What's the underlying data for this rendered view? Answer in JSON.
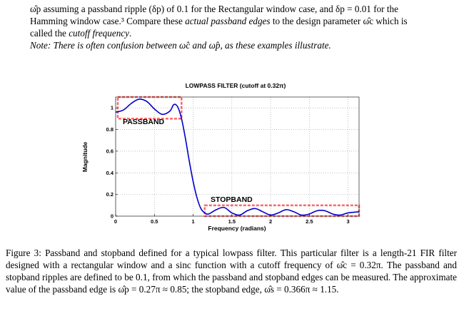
{
  "intro": {
    "line1": "ω̂p assuming a passband ripple (δp) of 0.1 for the Rectangular window case, and δp = 0.01 for the",
    "line2_a": "Hamming window case.³ Compare these ",
    "line2_em": "actual passband edges",
    "line2_b": " to the design parameter ω̂c which is",
    "line3_a": "called the ",
    "line3_em": "cutoff frequency",
    "line3_b": ".",
    "note_label": "Note:",
    "note_text": " There is often confusion between ω̂c and ω̂p, as these examples illustrate."
  },
  "chart_data": {
    "type": "line",
    "title": "LOWPASS FILTER (cutoff at 0.32π)",
    "xlabel": "Frequency (radians)",
    "ylabel": "Magnitude",
    "xlim": [
      0,
      3.1416
    ],
    "ylim": [
      0,
      1.1
    ],
    "grid": true,
    "x_ticks": [
      "0",
      "0.5",
      "1",
      "1.5",
      "2",
      "2.5",
      "3"
    ],
    "y_ticks": [
      "0",
      "0.2",
      "0.4",
      "0.6",
      "0.8",
      "1"
    ],
    "annotations": [
      "PASSBAND",
      "STOPBAND"
    ],
    "passband_region": {
      "x": [
        0,
        0.85
      ],
      "y": [
        0.9,
        1.1
      ]
    },
    "stopband_region": {
      "x": [
        1.15,
        3.1416
      ],
      "y": [
        0,
        0.1
      ]
    },
    "curve_color": "#0000cc",
    "band_color": "#ff6666",
    "series": [
      {
        "x": [
          0,
          0.1,
          0.2,
          0.3,
          0.4,
          0.5,
          0.6,
          0.7,
          0.75,
          0.8,
          0.85,
          0.9,
          0.95,
          1.0,
          1.05,
          1.1,
          1.15,
          1.2,
          1.3,
          1.4,
          1.5,
          1.6,
          1.7,
          1.8,
          1.9,
          2.0,
          2.1,
          2.2,
          2.3,
          2.4,
          2.5,
          2.6,
          2.7,
          2.8,
          2.9,
          3.0,
          3.1416
        ],
        "y": [
          0.96,
          0.98,
          1.04,
          1.08,
          1.06,
          0.99,
          0.94,
          0.97,
          1.03,
          1.01,
          0.9,
          0.72,
          0.51,
          0.32,
          0.17,
          0.07,
          0.03,
          0.02,
          0.06,
          0.08,
          0.03,
          0.01,
          0.05,
          0.07,
          0.04,
          0.01,
          0.03,
          0.06,
          0.04,
          0.01,
          0.02,
          0.05,
          0.05,
          0.02,
          0.01,
          0.03,
          0.04
        ]
      }
    ]
  },
  "caption": {
    "text": "Figure 3: Passband and stopband defined for a typical lowpass filter. This particular filter is a length-21 FIR filter designed with a rectangular window and a sinc function with a cutoff frequency of ω̂c = 0.32π. The passband and stopband ripples are defined to be 0.1, from which the passband and stopband edges can be measured. The approximate value of the passband edge is ω̂p = 0.27π ≈ 0.85; the stopband edge, ω̂s = 0.366π ≈ 1.15."
  }
}
